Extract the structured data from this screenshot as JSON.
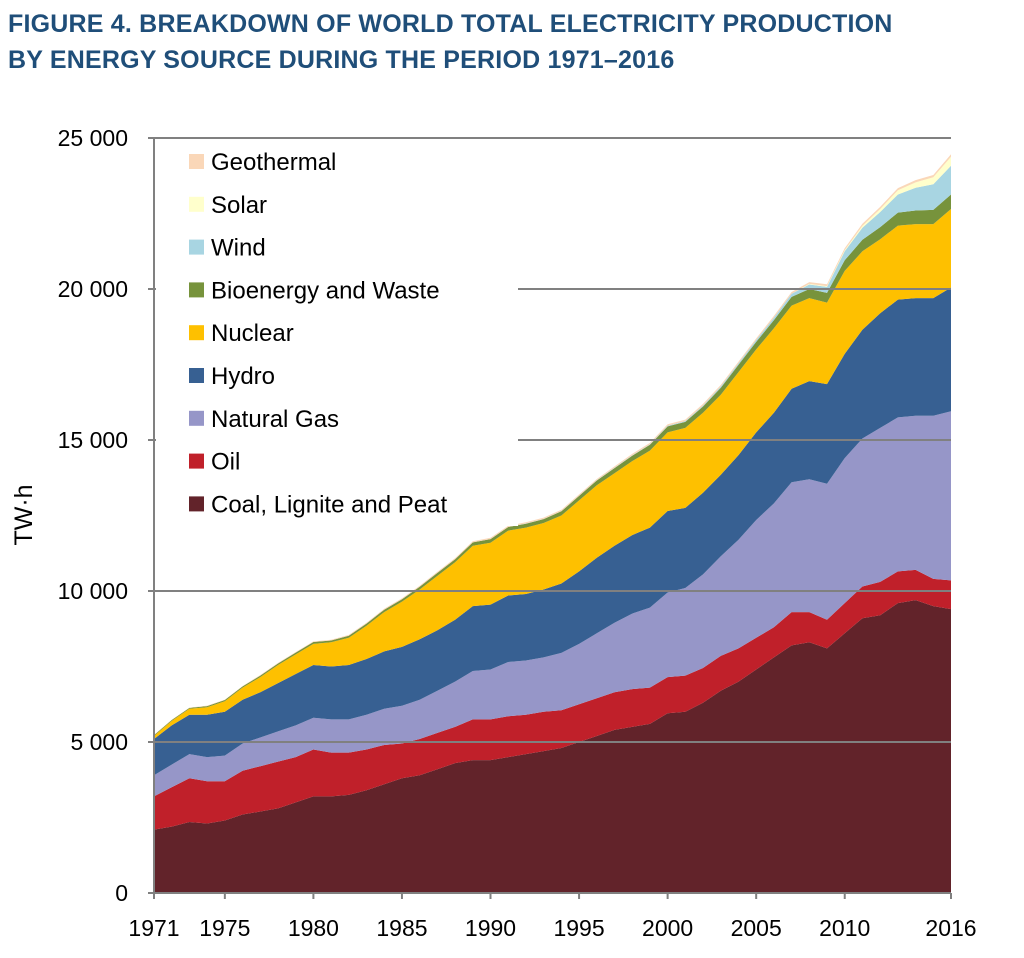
{
  "title_line1": "FIGURE 4. BREAKDOWN OF WORLD TOTAL ELECTRICITY PRODUCTION",
  "title_line2": "BY ENERGY SOURCE  DURING THE PERIOD 1971–2016",
  "chart_data": {
    "type": "area",
    "stacked": true,
    "title": "FIGURE 4. BREAKDOWN OF WORLD TOTAL ELECTRICITY PRODUCTION BY ENERGY SOURCE DURING THE PERIOD 1971–2016",
    "xlabel": "",
    "ylabel": "TW·h",
    "xlim": [
      1971,
      2016
    ],
    "ylim": [
      0,
      25000
    ],
    "yticks": [
      0,
      5000,
      10000,
      15000,
      20000,
      25000
    ],
    "ytick_labels": [
      "0",
      "5 000",
      "10 000",
      "15 000",
      "20 000",
      "25 000"
    ],
    "xticks": [
      1971,
      1975,
      1980,
      1985,
      1990,
      1995,
      2000,
      2005,
      2010,
      2016
    ],
    "xtick_labels": [
      "1971",
      "1975",
      "1980",
      "1985",
      "1990",
      "1995",
      "2000",
      "2005",
      "2010",
      "2016"
    ],
    "grid": "horizontal",
    "legend_position": "top-left",
    "x": [
      1971,
      1972,
      1973,
      1974,
      1975,
      1976,
      1977,
      1978,
      1979,
      1980,
      1981,
      1982,
      1983,
      1984,
      1985,
      1986,
      1987,
      1988,
      1989,
      1990,
      1991,
      1992,
      1993,
      1994,
      1995,
      1996,
      1997,
      1998,
      1999,
      2000,
      2001,
      2002,
      2003,
      2004,
      2005,
      2006,
      2007,
      2008,
      2009,
      2010,
      2011,
      2012,
      2013,
      2014,
      2015,
      2016
    ],
    "series": [
      {
        "name": "Coal, Lignite and Peat",
        "color": "#62232a",
        "values": [
          2100,
          2200,
          2350,
          2300,
          2400,
          2600,
          2700,
          2800,
          3000,
          3200,
          3200,
          3250,
          3400,
          3600,
          3800,
          3900,
          4100,
          4300,
          4400,
          4400,
          4500,
          4600,
          4700,
          4800,
          5000,
          5200,
          5400,
          5500,
          5600,
          5950,
          6000,
          6300,
          6700,
          7000,
          7400,
          7800,
          8200,
          8300,
          8100,
          8600,
          9100,
          9200,
          9600,
          9700,
          9500,
          9400
        ]
      },
      {
        "name": "Oil",
        "color": "#c0202a",
        "values": [
          1100,
          1300,
          1450,
          1400,
          1300,
          1450,
          1500,
          1550,
          1500,
          1550,
          1450,
          1400,
          1350,
          1300,
          1150,
          1200,
          1200,
          1200,
          1350,
          1350,
          1350,
          1300,
          1300,
          1250,
          1250,
          1250,
          1250,
          1250,
          1200,
          1200,
          1200,
          1150,
          1150,
          1100,
          1050,
          1000,
          1100,
          1000,
          950,
          1000,
          1050,
          1100,
          1050,
          1000,
          900,
          950
        ]
      },
      {
        "name": "Natural Gas",
        "color": "#9696c8",
        "values": [
          700,
          750,
          800,
          800,
          850,
          900,
          950,
          1000,
          1050,
          1050,
          1100,
          1100,
          1150,
          1200,
          1250,
          1300,
          1400,
          1500,
          1600,
          1650,
          1800,
          1800,
          1800,
          1900,
          2000,
          2150,
          2300,
          2500,
          2650,
          2800,
          2900,
          3100,
          3300,
          3600,
          3900,
          4100,
          4300,
          4400,
          4500,
          4800,
          4900,
          5100,
          5100,
          5100,
          5400,
          5600
        ]
      },
      {
        "name": "Hydro",
        "color": "#376092",
        "values": [
          1200,
          1300,
          1300,
          1400,
          1450,
          1450,
          1500,
          1600,
          1700,
          1750,
          1750,
          1800,
          1850,
          1900,
          1950,
          2000,
          2000,
          2050,
          2150,
          2150,
          2200,
          2200,
          2250,
          2300,
          2400,
          2500,
          2550,
          2600,
          2650,
          2700,
          2650,
          2700,
          2700,
          2800,
          2900,
          3000,
          3100,
          3250,
          3300,
          3450,
          3600,
          3800,
          3900,
          3900,
          3900,
          4100
        ]
      },
      {
        "name": "Nuclear",
        "color": "#fec000",
        "values": [
          100,
          150,
          200,
          250,
          350,
          400,
          500,
          600,
          650,
          700,
          800,
          900,
          1100,
          1300,
          1500,
          1650,
          1800,
          1900,
          2000,
          2050,
          2150,
          2200,
          2200,
          2250,
          2350,
          2400,
          2400,
          2450,
          2550,
          2600,
          2650,
          2650,
          2650,
          2750,
          2750,
          2800,
          2750,
          2750,
          2700,
          2750,
          2600,
          2450,
          2450,
          2450,
          2450,
          2600
        ]
      },
      {
        "name": "Bioenergy and Waste",
        "color": "#77933c",
        "values": [
          30,
          30,
          30,
          40,
          40,
          40,
          50,
          50,
          60,
          60,
          60,
          70,
          70,
          80,
          80,
          90,
          100,
          100,
          110,
          120,
          120,
          130,
          130,
          140,
          150,
          160,
          170,
          180,
          190,
          200,
          200,
          210,
          230,
          240,
          250,
          270,
          290,
          300,
          320,
          350,
          380,
          400,
          430,
          450,
          470,
          480
        ]
      },
      {
        "name": "Wind",
        "color": "#a8d5e2",
        "values": [
          0,
          0,
          0,
          0,
          0,
          0,
          0,
          0,
          0,
          0,
          0,
          0,
          0,
          0,
          0,
          0,
          0,
          0,
          0,
          0,
          0,
          5,
          5,
          5,
          5,
          5,
          10,
          10,
          15,
          20,
          25,
          30,
          40,
          50,
          60,
          80,
          100,
          150,
          200,
          300,
          400,
          500,
          600,
          750,
          850,
          950
        ]
      },
      {
        "name": "Solar",
        "color": "#ffffcc",
        "values": [
          0,
          0,
          0,
          0,
          0,
          0,
          0,
          0,
          0,
          0,
          0,
          0,
          0,
          0,
          0,
          0,
          0,
          0,
          0,
          0,
          0,
          0,
          0,
          0,
          0,
          0,
          0,
          0,
          0,
          0,
          0,
          0,
          0,
          0,
          0,
          0,
          0,
          20,
          25,
          35,
          60,
          100,
          140,
          180,
          230,
          300
        ]
      },
      {
        "name": "Geothermal",
        "color": "#fad7b8",
        "values": [
          10,
          10,
          10,
          15,
          15,
          15,
          20,
          20,
          20,
          20,
          25,
          25,
          30,
          30,
          30,
          35,
          35,
          40,
          40,
          40,
          40,
          40,
          45,
          45,
          45,
          45,
          45,
          50,
          50,
          50,
          50,
          55,
          55,
          55,
          55,
          60,
          60,
          60,
          65,
          65,
          70,
          70,
          70,
          75,
          75,
          80
        ]
      }
    ]
  }
}
